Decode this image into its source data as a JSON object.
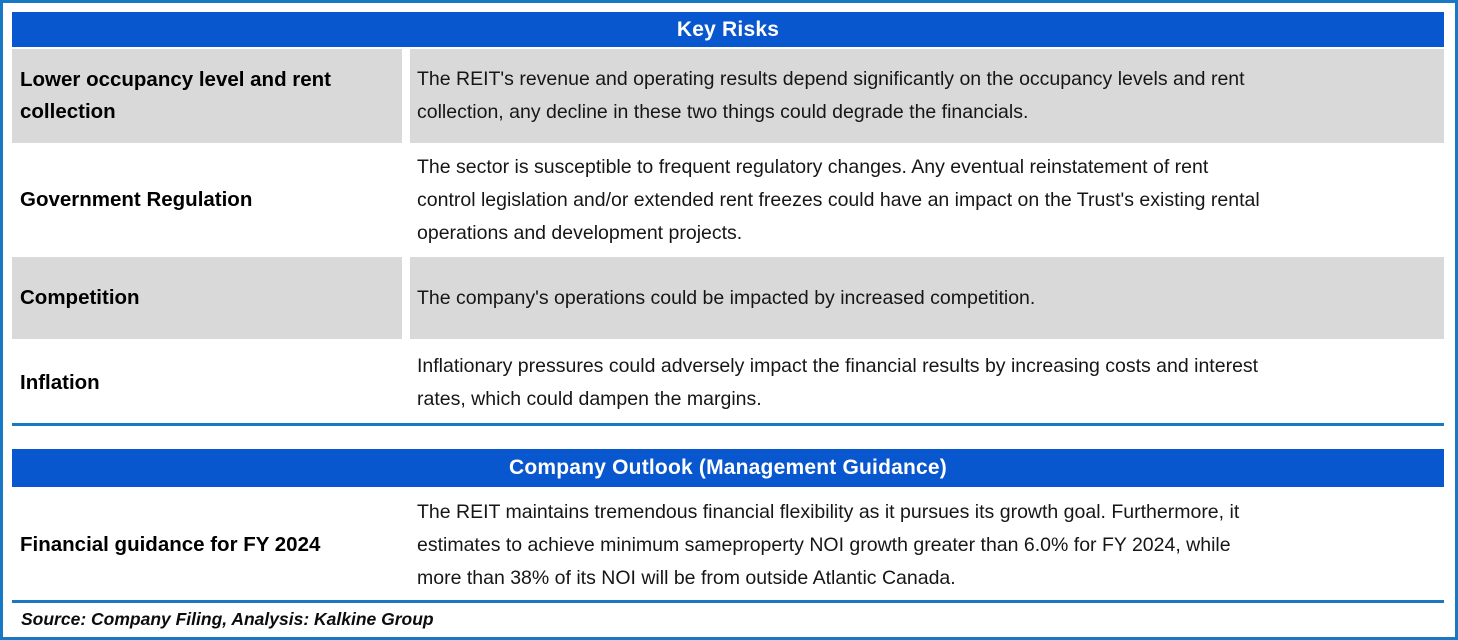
{
  "colors": {
    "header_bg": "#0957cf",
    "header_text": "#ffffff",
    "row_shade": "#d9d9d9",
    "border_line": "#1878c4"
  },
  "key_risks": {
    "title": "Key Risks",
    "rows": [
      {
        "label": "Lower occupancy level and rent collection",
        "shaded": true,
        "description_lines": [
          "The REIT's revenue and operating results depend significantly on the occupancy levels and rent",
          "collection, any decline in these two things could degrade the financials."
        ]
      },
      {
        "label": "Government Regulation",
        "shaded": false,
        "description_lines": [
          "The sector is susceptible to frequent regulatory changes. Any eventual reinstatement of rent",
          "control legislation and/or extended rent freezes could have an impact on the Trust's existing rental",
          "operations and development projects."
        ]
      },
      {
        "label": "Competition",
        "shaded": true,
        "description_lines": [
          "The company's operations could be impacted by increased competition."
        ]
      },
      {
        "label": "Inflation",
        "shaded": false,
        "description_lines": [
          "Inflationary pressures could adversely impact the financial results by increasing costs and interest",
          "rates, which could dampen the margins."
        ]
      }
    ]
  },
  "company_outlook": {
    "title": "Company Outlook (Management Guidance)",
    "rows": [
      {
        "label": "Financial guidance for FY 2024",
        "shaded": false,
        "description_lines": [
          "The REIT maintains tremendous financial flexibility as it pursues its growth goal. Furthermore, it",
          "estimates to achieve minimum sameproperty NOI growth greater than 6.0% for FY 2024, while",
          "more than 38% of its NOI will be from outside Atlantic Canada."
        ]
      }
    ]
  },
  "footer": {
    "source": "Source: Company Filing, Analysis: Kalkine Group"
  }
}
